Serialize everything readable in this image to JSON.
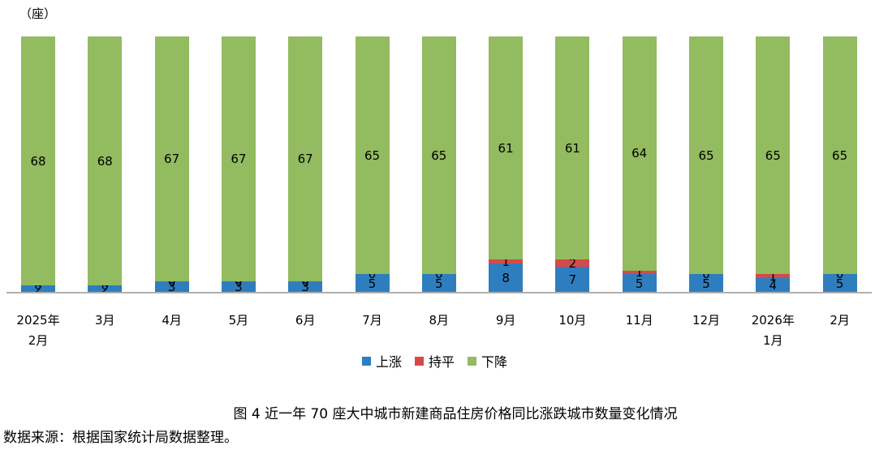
{
  "unit_label": "（座）",
  "colors": {
    "up": "#2e7ebf",
    "flat": "#d54a49",
    "down": "#93bb5f"
  },
  "chart_data": {
    "type": "bar",
    "stacked": true,
    "normalized": true,
    "title": "图 4  近一年 70 座大中城市新建商品住房价格同比涨跌城市数量变化情况",
    "ylabel": "（座）",
    "xlabel": "",
    "categories": [
      "2025年2月",
      "3月",
      "4月",
      "5月",
      "6月",
      "7月",
      "8月",
      "9月",
      "10月",
      "11月",
      "12月",
      "2026年1月",
      "2月"
    ],
    "series": [
      {
        "name": "上涨",
        "color": "#2e7ebf",
        "values": [
          2,
          2,
          3,
          3,
          3,
          5,
          5,
          8,
          7,
          5,
          5,
          4,
          5
        ]
      },
      {
        "name": "持平",
        "color": "#d54a49",
        "values": [
          0,
          0,
          0,
          0,
          0,
          0,
          0,
          1,
          2,
          1,
          0,
          1,
          0
        ]
      },
      {
        "name": "下降",
        "color": "#93bb5f",
        "values": [
          68,
          68,
          67,
          67,
          67,
          65,
          65,
          61,
          61,
          64,
          65,
          65,
          65
        ]
      }
    ],
    "grid": false,
    "legend_position": "bottom"
  },
  "x_labels": [
    [
      "2025年",
      "2月"
    ],
    [
      "3月"
    ],
    [
      "4月"
    ],
    [
      "5月"
    ],
    [
      "6月"
    ],
    [
      "7月"
    ],
    [
      "8月"
    ],
    [
      "9月"
    ],
    [
      "10月"
    ],
    [
      "11月"
    ],
    [
      "12月"
    ],
    [
      "2026年",
      "1月"
    ],
    [
      "2月"
    ]
  ],
  "legend": [
    {
      "label": "上涨",
      "color": "#2e7ebf"
    },
    {
      "label": "持平",
      "color": "#d54a49"
    },
    {
      "label": "下降",
      "color": "#93bb5f"
    }
  ],
  "caption": "图 4  近一年 70 座大中城市新建商品住房价格同比涨跌城市数量变化情况",
  "source": "数据来源：根据国家统计局数据整理。"
}
